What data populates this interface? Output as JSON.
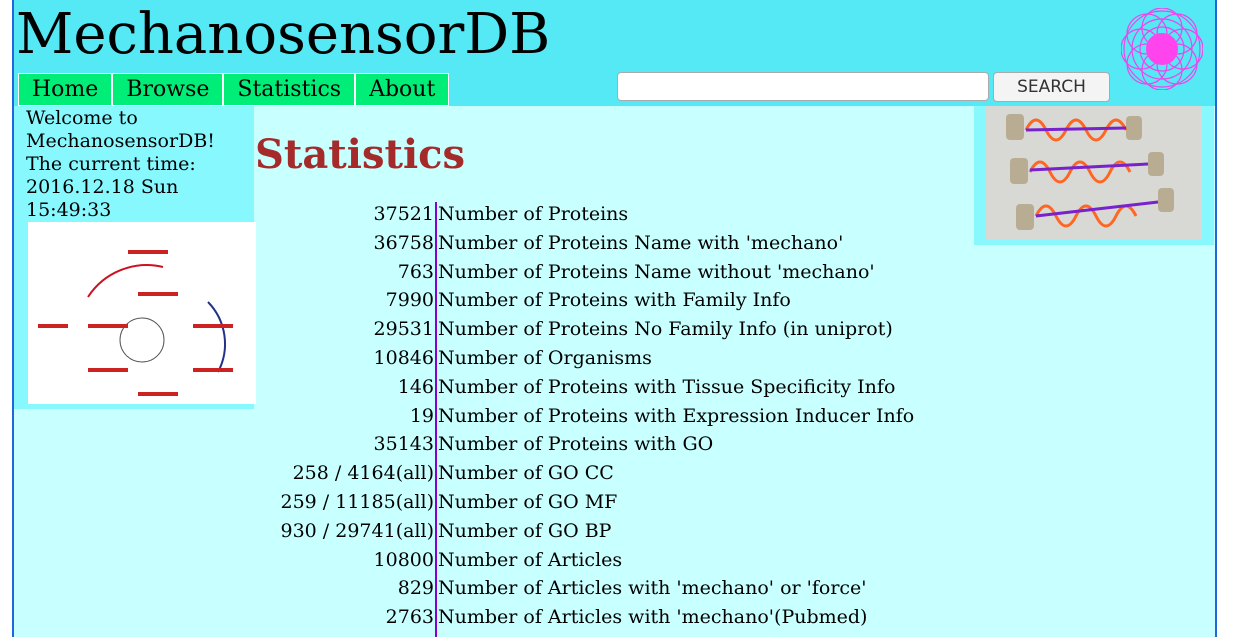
{
  "header": {
    "title": "MechanosensorDB",
    "nav": [
      "Home",
      "Browse",
      "Statistics",
      "About"
    ],
    "search_button": "SEARCH"
  },
  "sidebar": {
    "welcome": "Welcome to MechanosensorDB!",
    "time_label": "The current time:",
    "time": "2016.12.18 Sun 15:49:33"
  },
  "main": {
    "title": "Statistics",
    "table": {
      "rows": [
        [
          37521,
          "Number of Proteins"
        ],
        [
          36758,
          "Number of Proteins Name with 'mechano'"
        ],
        [
          763,
          "Number of Proteins Name without 'mechano'"
        ],
        [
          7990,
          "Number of Proteins with Family Info"
        ],
        [
          29531,
          "Number of Proteins No Family Info (in uniprot)"
        ],
        [
          10846,
          "Number of Organisms"
        ],
        [
          146,
          "Number of Proteins with Tissue Specificity Info"
        ],
        [
          19,
          "Number of Proteins with Expression Inducer Info"
        ],
        [
          35143,
          "Number of Proteins with GO"
        ],
        [
          "258 / 4164(all)",
          "Number of GO CC"
        ],
        [
          "259 / 11185(all)",
          "Number of GO MF"
        ],
        [
          "930 / 29741(all)",
          "Number of GO BP"
        ],
        [
          10800,
          "Number of Articles"
        ],
        [
          829,
          "Number of Articles with 'mechano' or 'force'"
        ],
        [
          2763,
          "Number of Articles with 'mechano'(Pubmed)"
        ]
      ]
    }
  }
}
